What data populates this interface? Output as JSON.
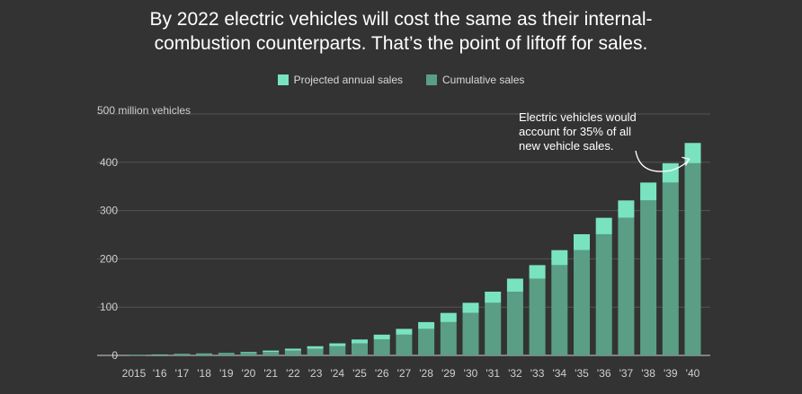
{
  "title": {
    "line1": "By 2022 electric vehicles will cost the same as their internal-",
    "line2": "combustion counterparts. That’s the point of liftoff for sales."
  },
  "colors": {
    "background": "#333333",
    "projected": "#79e3c0",
    "cumulative": "#5a9e85",
    "grid": "#555555",
    "text": "#cfcfcf"
  },
  "chart_data": {
    "type": "bar",
    "stacked": true,
    "title": "By 2022 electric vehicles will cost the same as their internal-combustion counterparts. That’s the point of liftoff for sales.",
    "ylabel_unit": "500 million vehicles",
    "ylim": [
      0,
      500
    ],
    "yticks": [
      0,
      100,
      200,
      300,
      400,
      500
    ],
    "ytick_labels": [
      "0",
      "100",
      "200",
      "300",
      "400",
      "500 million vehicles"
    ],
    "grid": true,
    "legend_position": "top-center",
    "categories": [
      "2015",
      "'16",
      "'17",
      "'18",
      "'19",
      "'20",
      "'21",
      "'22",
      "'23",
      "'24",
      "'25",
      "'26",
      "'27",
      "'28",
      "'29",
      "'30",
      "'31",
      "'32",
      "'33",
      "'34",
      "'35",
      "'36",
      "'37",
      "'38",
      "'39",
      "'40"
    ],
    "series": [
      {
        "name": "Cumulative sales",
        "values": [
          0.5,
          1,
          2,
          3,
          4,
          5,
          7,
          10,
          14,
          19,
          25,
          33,
          43,
          55,
          69,
          88,
          109,
          132,
          159,
          187,
          218,
          251,
          285,
          321,
          358,
          398
        ]
      },
      {
        "name": "Projected annual sales",
        "values": [
          0.5,
          1,
          1,
          1,
          1,
          2,
          3,
          4,
          5,
          6,
          8,
          10,
          12,
          14,
          19,
          21,
          23,
          27,
          28,
          31,
          33,
          34,
          36,
          37,
          40,
          42
        ]
      }
    ],
    "annotation": {
      "lines": [
        "Electric vehicles would",
        "account for 35% of all",
        "new vehicle sales."
      ],
      "target_category": "'40"
    }
  }
}
